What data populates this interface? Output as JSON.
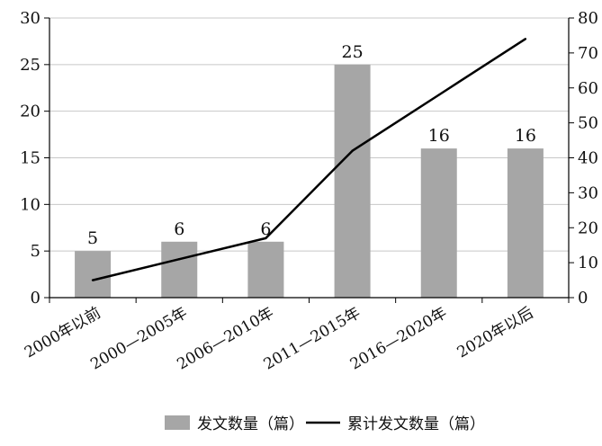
{
  "chart_data": {
    "type": "bar",
    "categories": [
      "2000年以前",
      "2000—2005年",
      "2006—2010年",
      "2011—2015年",
      "2016—2020年",
      "2020年以后"
    ],
    "series": [
      {
        "name": "发文数量（篇）",
        "type": "bar",
        "axis": "left",
        "color": "#a6a6a6",
        "values": [
          5,
          6,
          6,
          25,
          16,
          16
        ],
        "data_labels": [
          "5",
          "6",
          "6",
          "25",
          "16",
          "16"
        ]
      },
      {
        "name": "累计发文数量（篇）",
        "type": "line",
        "axis": "right",
        "color": "#000000",
        "values": [
          5,
          11,
          17,
          42,
          58,
          74
        ]
      }
    ],
    "y_left": {
      "ylim": [
        0,
        30
      ],
      "ticks": [
        0,
        5,
        10,
        15,
        20,
        25,
        30
      ],
      "tick_labels": [
        "0",
        "5",
        "10",
        "15",
        "20",
        "25",
        "30"
      ]
    },
    "y_right": {
      "ylim": [
        0,
        80
      ],
      "ticks": [
        0,
        10,
        20,
        30,
        40,
        50,
        60,
        70,
        80
      ],
      "tick_labels": [
        "0",
        "10",
        "20",
        "30",
        "40",
        "50",
        "60",
        "70",
        "80"
      ]
    },
    "grid": {
      "horizontal": true,
      "vertical": false
    },
    "legend": {
      "placement": "bottom",
      "entries": [
        "发文数量（篇）",
        "累计发文数量（篇）"
      ]
    },
    "title": "",
    "xlabel": "",
    "ylabel": ""
  }
}
